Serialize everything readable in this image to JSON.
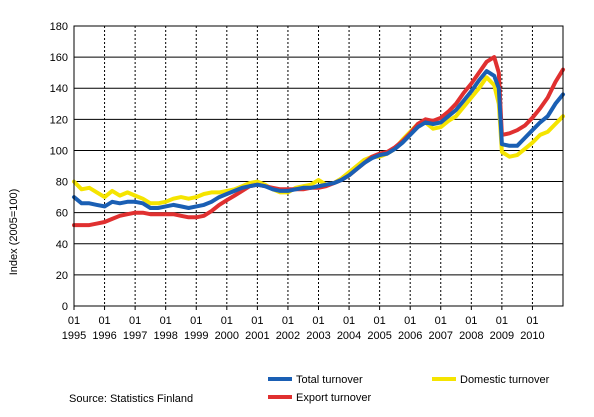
{
  "chart_data": {
    "type": "line",
    "title": "",
    "xlabel": "",
    "ylabel": "Index (2005=100)",
    "ylim": [
      0,
      180
    ],
    "yticks": [
      0,
      20,
      40,
      60,
      80,
      100,
      120,
      140,
      160,
      180
    ],
    "grid": "horizontal solid, vertical dashed at each year",
    "legend_position": "bottom",
    "x_month_label": "01",
    "x_years": [
      "1995",
      "1996",
      "1997",
      "1998",
      "1999",
      "2000",
      "2001",
      "2002",
      "2003",
      "2004",
      "2005",
      "2006",
      "2007",
      "2008",
      "2009",
      "2010"
    ],
    "x_start_year": 1995,
    "x_end_year": 2011,
    "source": "Source: Statistics Finland",
    "series": [
      {
        "name": "Total turnover",
        "color": "#1a5fb4",
        "points": [
          [
            1995.0,
            70
          ],
          [
            1995.25,
            66
          ],
          [
            1995.5,
            66
          ],
          [
            1995.75,
            65
          ],
          [
            1996.0,
            64
          ],
          [
            1996.25,
            67
          ],
          [
            1996.5,
            66
          ],
          [
            1996.75,
            67
          ],
          [
            1997.0,
            67
          ],
          [
            1997.25,
            66
          ],
          [
            1997.5,
            63
          ],
          [
            1997.75,
            63
          ],
          [
            1998.0,
            64
          ],
          [
            1998.25,
            65
          ],
          [
            1998.5,
            64
          ],
          [
            1998.75,
            63
          ],
          [
            1999.0,
            64
          ],
          [
            1999.25,
            65
          ],
          [
            1999.5,
            67
          ],
          [
            1999.75,
            70
          ],
          [
            2000.0,
            72
          ],
          [
            2000.25,
            74
          ],
          [
            2000.5,
            76
          ],
          [
            2000.75,
            77
          ],
          [
            2001.0,
            78
          ],
          [
            2001.25,
            77
          ],
          [
            2001.5,
            75
          ],
          [
            2001.75,
            74
          ],
          [
            2002.0,
            74
          ],
          [
            2002.25,
            75
          ],
          [
            2002.5,
            76
          ],
          [
            2002.75,
            76
          ],
          [
            2003.0,
            77
          ],
          [
            2003.25,
            78
          ],
          [
            2003.5,
            79
          ],
          [
            2003.75,
            81
          ],
          [
            2004.0,
            84
          ],
          [
            2004.25,
            88
          ],
          [
            2004.5,
            92
          ],
          [
            2004.75,
            95
          ],
          [
            2005.0,
            97
          ],
          [
            2005.25,
            98
          ],
          [
            2005.5,
            101
          ],
          [
            2005.75,
            105
          ],
          [
            2006.0,
            110
          ],
          [
            2006.25,
            115
          ],
          [
            2006.5,
            118
          ],
          [
            2006.75,
            117
          ],
          [
            2007.0,
            118
          ],
          [
            2007.25,
            122
          ],
          [
            2007.5,
            126
          ],
          [
            2007.75,
            132
          ],
          [
            2008.0,
            138
          ],
          [
            2008.25,
            145
          ],
          [
            2008.5,
            151
          ],
          [
            2008.75,
            148
          ],
          [
            2008.9,
            140
          ],
          [
            2009.0,
            104
          ],
          [
            2009.25,
            103
          ],
          [
            2009.5,
            103
          ],
          [
            2009.75,
            108
          ],
          [
            2010.0,
            113
          ],
          [
            2010.25,
            118
          ],
          [
            2010.5,
            122
          ],
          [
            2010.75,
            130
          ],
          [
            2011.0,
            136
          ]
        ]
      },
      {
        "name": "Domestic turnover",
        "color": "#f5e400",
        "points": [
          [
            1995.0,
            80
          ],
          [
            1995.25,
            75
          ],
          [
            1995.5,
            76
          ],
          [
            1995.75,
            73
          ],
          [
            1996.0,
            70
          ],
          [
            1996.25,
            74
          ],
          [
            1996.5,
            71
          ],
          [
            1996.75,
            73
          ],
          [
            1997.0,
            71
          ],
          [
            1997.25,
            69
          ],
          [
            1997.5,
            66
          ],
          [
            1997.75,
            66
          ],
          [
            1998.0,
            67
          ],
          [
            1998.25,
            69
          ],
          [
            1998.5,
            70
          ],
          [
            1998.75,
            69
          ],
          [
            1999.0,
            70
          ],
          [
            1999.25,
            72
          ],
          [
            1999.5,
            73
          ],
          [
            1999.75,
            73
          ],
          [
            2000.0,
            74
          ],
          [
            2000.25,
            75
          ],
          [
            2000.5,
            77
          ],
          [
            2000.75,
            79
          ],
          [
            2001.0,
            80
          ],
          [
            2001.25,
            78
          ],
          [
            2001.5,
            75
          ],
          [
            2001.75,
            73
          ],
          [
            2002.0,
            73
          ],
          [
            2002.25,
            76
          ],
          [
            2002.5,
            77
          ],
          [
            2002.75,
            78
          ],
          [
            2003.0,
            81
          ],
          [
            2003.25,
            78
          ],
          [
            2003.5,
            79
          ],
          [
            2003.75,
            82
          ],
          [
            2004.0,
            86
          ],
          [
            2004.25,
            90
          ],
          [
            2004.5,
            94
          ],
          [
            2004.75,
            96
          ],
          [
            2005.0,
            96
          ],
          [
            2005.25,
            98
          ],
          [
            2005.5,
            101
          ],
          [
            2005.75,
            107
          ],
          [
            2006.0,
            112
          ],
          [
            2006.25,
            117
          ],
          [
            2006.5,
            118
          ],
          [
            2006.75,
            114
          ],
          [
            2007.0,
            115
          ],
          [
            2007.25,
            119
          ],
          [
            2007.5,
            122
          ],
          [
            2007.75,
            128
          ],
          [
            2008.0,
            134
          ],
          [
            2008.25,
            140
          ],
          [
            2008.5,
            147
          ],
          [
            2008.75,
            142
          ],
          [
            2008.9,
            130
          ],
          [
            2009.0,
            99
          ],
          [
            2009.25,
            96
          ],
          [
            2009.5,
            97
          ],
          [
            2009.75,
            101
          ],
          [
            2010.0,
            105
          ],
          [
            2010.25,
            110
          ],
          [
            2010.5,
            112
          ],
          [
            2010.75,
            117
          ],
          [
            2011.0,
            122
          ]
        ]
      },
      {
        "name": "Export turnover",
        "color": "#e03030",
        "points": [
          [
            1995.0,
            52
          ],
          [
            1995.25,
            52
          ],
          [
            1995.5,
            52
          ],
          [
            1995.75,
            53
          ],
          [
            1996.0,
            54
          ],
          [
            1996.25,
            56
          ],
          [
            1996.5,
            58
          ],
          [
            1996.75,
            59
          ],
          [
            1997.0,
            60
          ],
          [
            1997.25,
            60
          ],
          [
            1997.5,
            59
          ],
          [
            1997.75,
            59
          ],
          [
            1998.0,
            59
          ],
          [
            1998.25,
            59
          ],
          [
            1998.5,
            58
          ],
          [
            1998.75,
            57
          ],
          [
            1999.0,
            57
          ],
          [
            1999.25,
            58
          ],
          [
            1999.5,
            61
          ],
          [
            1999.75,
            65
          ],
          [
            2000.0,
            68
          ],
          [
            2000.25,
            71
          ],
          [
            2000.5,
            74
          ],
          [
            2000.75,
            77
          ],
          [
            2001.0,
            78
          ],
          [
            2001.25,
            77
          ],
          [
            2001.5,
            76
          ],
          [
            2001.75,
            75
          ],
          [
            2002.0,
            75
          ],
          [
            2002.25,
            75
          ],
          [
            2002.5,
            75
          ],
          [
            2002.75,
            76
          ],
          [
            2003.0,
            76
          ],
          [
            2003.25,
            77
          ],
          [
            2003.5,
            79
          ],
          [
            2003.75,
            81
          ],
          [
            2004.0,
            84
          ],
          [
            2004.25,
            88
          ],
          [
            2004.5,
            92
          ],
          [
            2004.75,
            96
          ],
          [
            2005.0,
            98
          ],
          [
            2005.25,
            99
          ],
          [
            2005.5,
            102
          ],
          [
            2005.75,
            106
          ],
          [
            2006.0,
            111
          ],
          [
            2006.25,
            117
          ],
          [
            2006.5,
            120
          ],
          [
            2006.75,
            119
          ],
          [
            2007.0,
            121
          ],
          [
            2007.25,
            125
          ],
          [
            2007.5,
            130
          ],
          [
            2007.75,
            137
          ],
          [
            2008.0,
            143
          ],
          [
            2008.25,
            150
          ],
          [
            2008.5,
            157
          ],
          [
            2008.75,
            160
          ],
          [
            2008.9,
            150
          ],
          [
            2009.0,
            110
          ],
          [
            2009.25,
            111
          ],
          [
            2009.5,
            113
          ],
          [
            2009.75,
            116
          ],
          [
            2010.0,
            121
          ],
          [
            2010.25,
            127
          ],
          [
            2010.5,
            134
          ],
          [
            2010.75,
            144
          ],
          [
            2011.0,
            152
          ]
        ]
      }
    ]
  }
}
